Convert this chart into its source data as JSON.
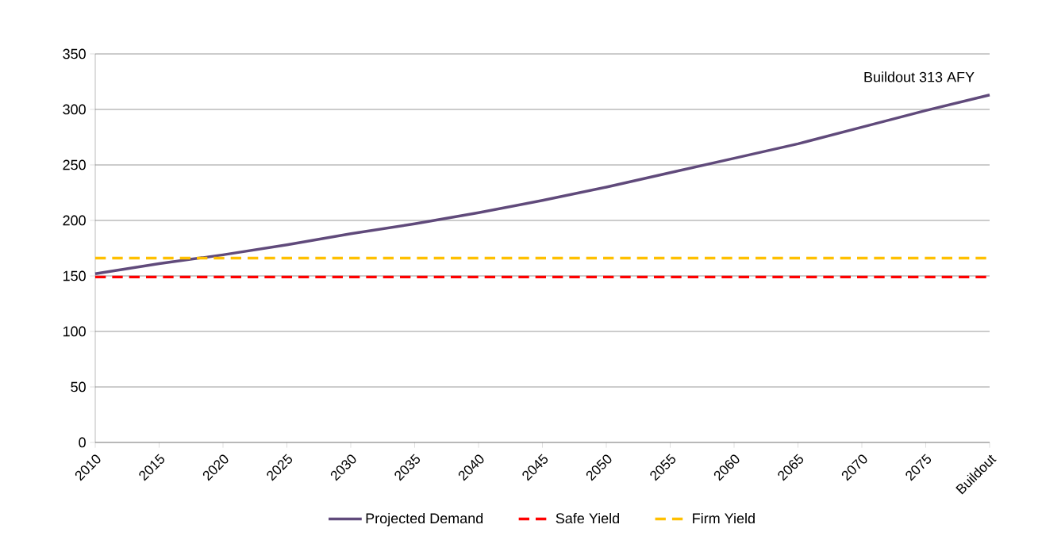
{
  "chart_data": {
    "type": "line",
    "categories": [
      "2010",
      "2015",
      "2020",
      "2025",
      "2030",
      "2035",
      "2040",
      "2045",
      "2050",
      "2055",
      "2060",
      "2065",
      "2070",
      "2075",
      "Buildout"
    ],
    "series": [
      {
        "name": "Projected Demand",
        "color": "#604a7b",
        "line_style": "solid",
        "values": [
          152,
          161,
          169,
          178,
          188,
          197,
          207,
          218,
          230,
          243,
          256,
          269,
          284,
          299,
          313
        ]
      },
      {
        "name": "Safe Yield",
        "color": "#ff0000",
        "line_style": "dashed",
        "values": [
          149,
          149,
          149,
          149,
          149,
          149,
          149,
          149,
          149,
          149,
          149,
          149,
          149,
          149,
          149
        ]
      },
      {
        "name": "Firm Yield",
        "color": "#ffc000",
        "line_style": "dashed",
        "values": [
          166,
          166,
          166,
          166,
          166,
          166,
          166,
          166,
          166,
          166,
          166,
          166,
          166,
          166,
          166
        ]
      }
    ],
    "ylim": [
      0,
      350
    ],
    "yticks": [
      0,
      50,
      100,
      150,
      200,
      250,
      300,
      350
    ],
    "grid": "y",
    "legend": "bottom",
    "marker": "none",
    "annotations": [
      {
        "text": "Buildout 313 AFY",
        "x": "Buildout",
        "y": 313
      }
    ]
  }
}
